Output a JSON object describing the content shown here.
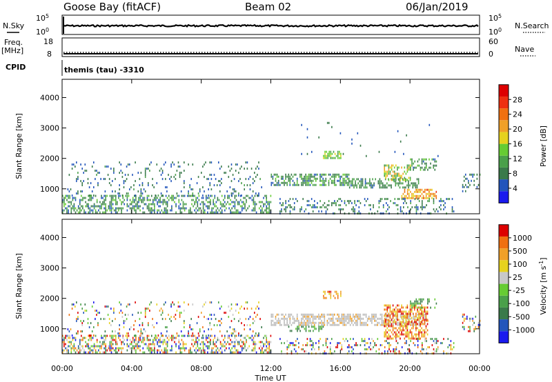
{
  "header": {
    "station": "Goose Bay (fitACF)",
    "beam": "Beam 02",
    "date": "06/Jan/2019"
  },
  "sky_panel": {
    "left_label": "N.Sky",
    "right_label": "N.Search",
    "left_ticks": [
      "10^5",
      "10^0"
    ],
    "right_ticks": [
      "10^5",
      "10^0"
    ],
    "level_fraction": 0.45
  },
  "freq_panel": {
    "left_label_line1": "Freq.",
    "left_label_line2": "[MHz]",
    "right_label": "Nave",
    "left_ticks": [
      "18",
      "8"
    ],
    "right_ticks": [
      "60",
      "0"
    ],
    "freq_level_fraction": 0.15,
    "nave_level_fraction": 0.22
  },
  "cpid": {
    "label": "CPID",
    "program": "themis (tau) -3310"
  },
  "x_axis": {
    "label": "Time UT",
    "ticks": [
      "00:00",
      "04:00",
      "08:00",
      "12:00",
      "16:00",
      "20:00",
      "00:00"
    ],
    "range_hours": [
      0,
      24
    ]
  },
  "colors": {
    "power": [
      "#1a1aee",
      "#2255bb",
      "#3a7a4a",
      "#4aa04a",
      "#66cc33",
      "#e6d21e",
      "#f0a028",
      "#f07010",
      "#ee3010",
      "#dd0000"
    ],
    "velocity": [
      "#1a1aee",
      "#2255bb",
      "#3a7a4a",
      "#4aa04a",
      "#66cc33",
      "#c8c8c8",
      "#e6d21e",
      "#f0a028",
      "#f07010",
      "#dd0000"
    ],
    "ground": "#bbbbbb"
  },
  "chart_data": [
    {
      "type": "heatmap",
      "panel": "power",
      "ylabel": "Slant Range [km]",
      "xlabel": "",
      "ylim": [
        180,
        4600
      ],
      "yticks": [
        1000,
        2000,
        3000,
        4000
      ],
      "colorbar_label": "Power [dB]",
      "colorbar_ticks": [
        "4",
        "8",
        "12",
        "16",
        "20",
        "24",
        "28"
      ],
      "colorbar_range": [
        0,
        32
      ],
      "features": [
        {
          "t": [
            0.0,
            12.0
          ],
          "r": [
            200,
            800
          ],
          "v": [
            4,
            14
          ],
          "density": 0.45
        },
        {
          "t": [
            0.3,
            11.5
          ],
          "r": [
            800,
            1900
          ],
          "v": [
            4,
            10
          ],
          "density": 0.12
        },
        {
          "t": [
            12.0,
            16.5
          ],
          "r": [
            1150,
            1500
          ],
          "v": [
            5,
            14
          ],
          "density": 0.55
        },
        {
          "t": [
            16.5,
            20.5
          ],
          "r": [
            1050,
            1350
          ],
          "v": [
            6,
            12
          ],
          "density": 0.5
        },
        {
          "t": [
            18.5,
            20.0
          ],
          "r": [
            1300,
            1800
          ],
          "v": [
            10,
            22
          ],
          "density": 0.55
        },
        {
          "t": [
            19.5,
            21.5
          ],
          "r": [
            700,
            1000
          ],
          "v": [
            16,
            26
          ],
          "density": 0.55
        },
        {
          "t": [
            15.0,
            16.0
          ],
          "r": [
            2000,
            2250
          ],
          "v": [
            10,
            18
          ],
          "density": 0.6
        },
        {
          "t": [
            20.0,
            21.5
          ],
          "r": [
            1600,
            2000
          ],
          "v": [
            6,
            14
          ],
          "density": 0.45
        },
        {
          "t": [
            12.5,
            22.5
          ],
          "r": [
            200,
            700
          ],
          "v": [
            4,
            12
          ],
          "density": 0.25
        },
        {
          "t": [
            23.0,
            24.0
          ],
          "r": [
            900,
            1500
          ],
          "v": [
            4,
            10
          ],
          "density": 0.25
        },
        {
          "t": [
            13.0,
            22.0
          ],
          "r": [
            2100,
            3200
          ],
          "v": [
            4,
            10
          ],
          "density": 0.015
        }
      ]
    },
    {
      "type": "heatmap",
      "panel": "velocity",
      "ylabel": "Slant Range [km]",
      "xlabel": "Time UT",
      "ylim": [
        180,
        4600
      ],
      "yticks": [
        1000,
        2000,
        3000,
        4000
      ],
      "colorbar_label": "Velocity [m s^-1]",
      "colorbar_ticks": [
        "1000",
        "500",
        "100",
        "25",
        "-25",
        "-100",
        "-500",
        "-1000"
      ],
      "features": [
        {
          "t": [
            0.0,
            12.0
          ],
          "r": [
            200,
            800
          ],
          "v": "mixed",
          "density": 0.45
        },
        {
          "t": [
            0.3,
            11.5
          ],
          "r": [
            800,
            1900
          ],
          "v": "mixed",
          "density": 0.12
        },
        {
          "t": [
            12.0,
            21.0
          ],
          "r": [
            1150,
            1500
          ],
          "v": "ground",
          "density": 0.6
        },
        {
          "t": [
            13.0,
            15.0
          ],
          "r": [
            900,
            1100
          ],
          "v": "positive",
          "density": 0.45
        },
        {
          "t": [
            18.5,
            21.0
          ],
          "r": [
            700,
            1800
          ],
          "v": "negative",
          "density": 0.55
        },
        {
          "t": [
            15.0,
            16.0
          ],
          "r": [
            2000,
            2250
          ],
          "v": "negative",
          "density": 0.6
        },
        {
          "t": [
            20.0,
            21.5
          ],
          "r": [
            1700,
            2000
          ],
          "v": "positive",
          "density": 0.45
        },
        {
          "t": [
            12.5,
            22.5
          ],
          "r": [
            200,
            700
          ],
          "v": "mixed",
          "density": 0.25
        },
        {
          "t": [
            23.0,
            24.0
          ],
          "r": [
            900,
            1500
          ],
          "v": "mixed",
          "density": 0.25
        }
      ]
    }
  ]
}
